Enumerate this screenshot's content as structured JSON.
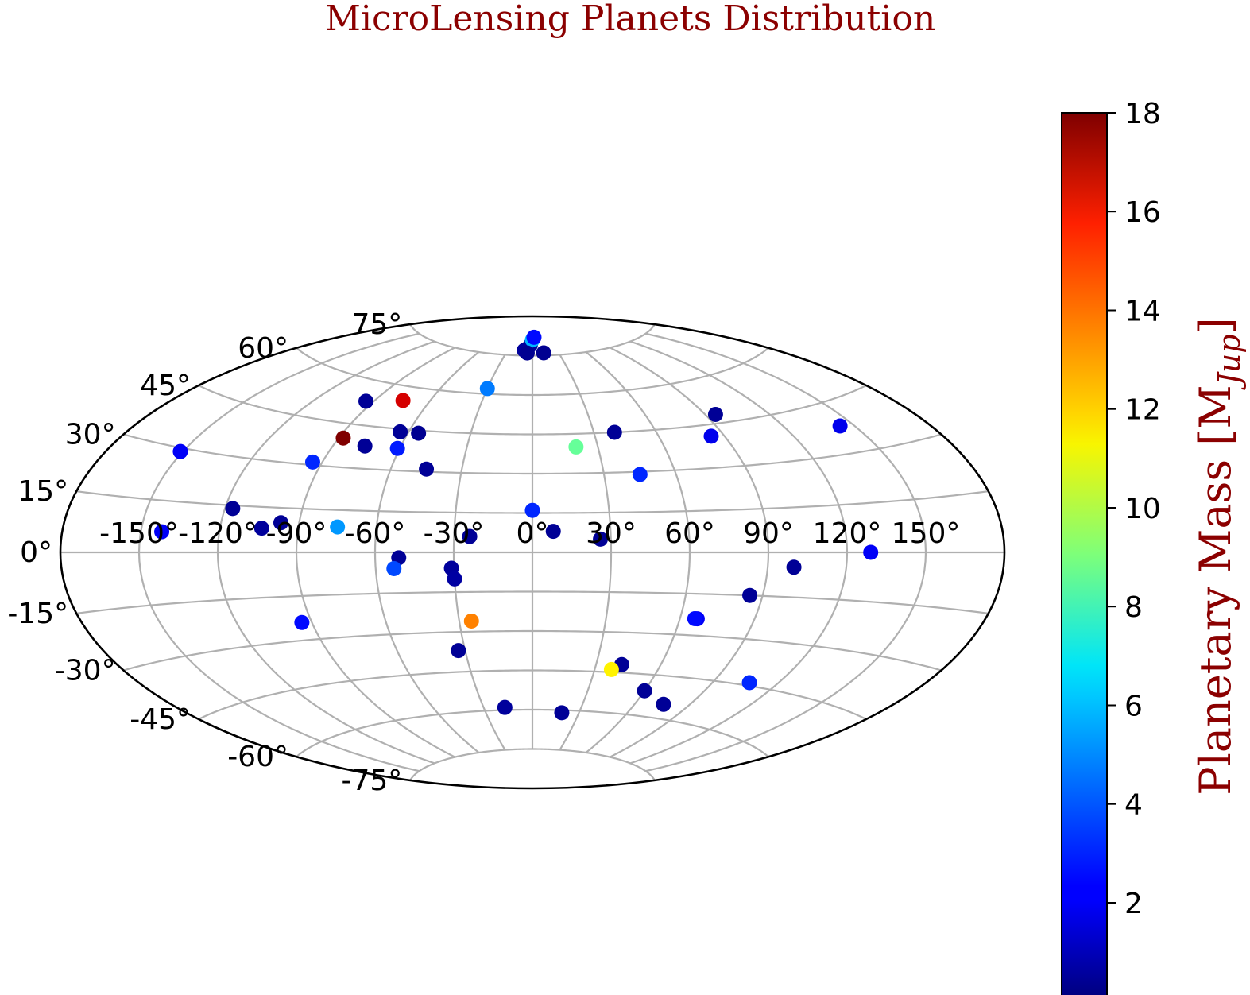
{
  "chart_data": {
    "type": "scatter",
    "projection": "aitoff",
    "title": "MicroLensing Planets Distribution",
    "grid": true,
    "x_ticks": [
      "-150°",
      "-120°",
      "-90°",
      "-60°",
      "-30°",
      "0°",
      "30°",
      "60°",
      "90°",
      "120°",
      "150°"
    ],
    "y_ticks": [
      "-75°",
      "-60°",
      "-45°",
      "-30°",
      "-15°",
      "0°",
      "15°",
      "30°",
      "45°",
      "60°",
      "75°"
    ],
    "colorbar": {
      "label_main": "Planetary Mass [M",
      "label_sub": "Jup",
      "label_end": "]",
      "colormap": "jet",
      "range": [
        0.1,
        18
      ],
      "ticks": [
        "2",
        "4",
        "6",
        "8",
        "10",
        "12",
        "14",
        "16",
        "18"
      ]
    },
    "points": [
      {
        "lon": -10,
        "lat": 77,
        "mass": 0.6
      },
      {
        "lon": -3,
        "lat": 79,
        "mass": 0.6
      },
      {
        "lon": 0,
        "lat": 81,
        "mass": 5.5
      },
      {
        "lon": 3,
        "lat": 82,
        "mass": 2.5
      },
      {
        "lon": -6,
        "lat": 76,
        "mass": 0.4
      },
      {
        "lon": 13,
        "lat": 76,
        "mass": 0.4
      },
      {
        "lon": -30,
        "lat": 62,
        "mass": 4.5
      },
      {
        "lon": -75,
        "lat": 55,
        "mass": 16.5
      },
      {
        "lon": -94,
        "lat": 53,
        "mass": 0.5
      },
      {
        "lon": -64,
        "lat": 44,
        "mass": 0.5
      },
      {
        "lon": -55,
        "lat": 44,
        "mass": 0.4
      },
      {
        "lon": -88,
        "lat": 40,
        "mass": 18
      },
      {
        "lon": -76,
        "lat": 38,
        "mass": 0.5
      },
      {
        "lon": -61,
        "lat": 38,
        "mass": 2.8
      },
      {
        "lon": -94,
        "lat": 31,
        "mass": 3.0
      },
      {
        "lon": -45,
        "lat": 31,
        "mass": 0.5
      },
      {
        "lon": -151,
        "lat": 29,
        "mass": 2.2
      },
      {
        "lon": 40,
        "lat": 45,
        "mass": 0.5
      },
      {
        "lon": 45,
        "lat": 29,
        "mass": 3.0
      },
      {
        "lon": 20,
        "lat": 40,
        "mass": 8.6
      },
      {
        "lon": 95,
        "lat": 48,
        "mass": 0.5
      },
      {
        "lon": 84,
        "lat": 41,
        "mass": 2.0
      },
      {
        "lon": 144,
        "lat": 38,
        "mass": 2.0
      },
      {
        "lon": 0,
        "lat": 16,
        "mass": 3.0
      },
      {
        "lon": -117,
        "lat": 14,
        "mass": 0.5
      },
      {
        "lon": -104,
        "lat": 8,
        "mass": 0.6
      },
      {
        "lon": -97,
        "lat": 10,
        "mass": 0.5
      },
      {
        "lon": -75,
        "lat": 9,
        "mass": 5.0
      },
      {
        "lon": -142,
        "lat": 6,
        "mass": 2.2
      },
      {
        "lon": -24,
        "lat": 6,
        "mass": 0.5
      },
      {
        "lon": 8,
        "lat": 8,
        "mass": 0.5
      },
      {
        "lon": 26,
        "lat": 5,
        "mass": 0.5
      },
      {
        "lon": -51,
        "lat": -2,
        "mass": 0.5
      },
      {
        "lon": -53,
        "lat": -6,
        "mass": 3.6
      },
      {
        "lon": -31,
        "lat": -6,
        "mass": 0.6
      },
      {
        "lon": -30,
        "lat": -10,
        "mass": 0.7
      },
      {
        "lon": 129,
        "lat": 0,
        "mass": 2.2
      },
      {
        "lon": 100,
        "lat": -5,
        "mass": 0.5
      },
      {
        "lon": 85,
        "lat": -15,
        "mass": 0.5
      },
      {
        "lon": 67,
        "lat": -24,
        "mass": 2.2
      },
      {
        "lon": 66,
        "lat": -24,
        "mass": 2.5
      },
      {
        "lon": -94,
        "lat": -24,
        "mass": 2.5
      },
      {
        "lon": -25,
        "lat": -26,
        "mass": 13.5
      },
      {
        "lon": -33,
        "lat": -37,
        "mass": 0.5
      },
      {
        "lon": 42,
        "lat": -42,
        "mass": 0.5
      },
      {
        "lon": 38,
        "lat": -44,
        "mass": 11.5
      },
      {
        "lon": 107,
        "lat": -44,
        "mass": 3.0
      },
      {
        "lon": 60,
        "lat": -51,
        "mass": 0.5
      },
      {
        "lon": -17,
        "lat": -59,
        "mass": 0.6
      },
      {
        "lon": 19,
        "lat": -61,
        "mass": 0.5
      },
      {
        "lon": 76,
        "lat": -55,
        "mass": 0.5
      }
    ]
  }
}
